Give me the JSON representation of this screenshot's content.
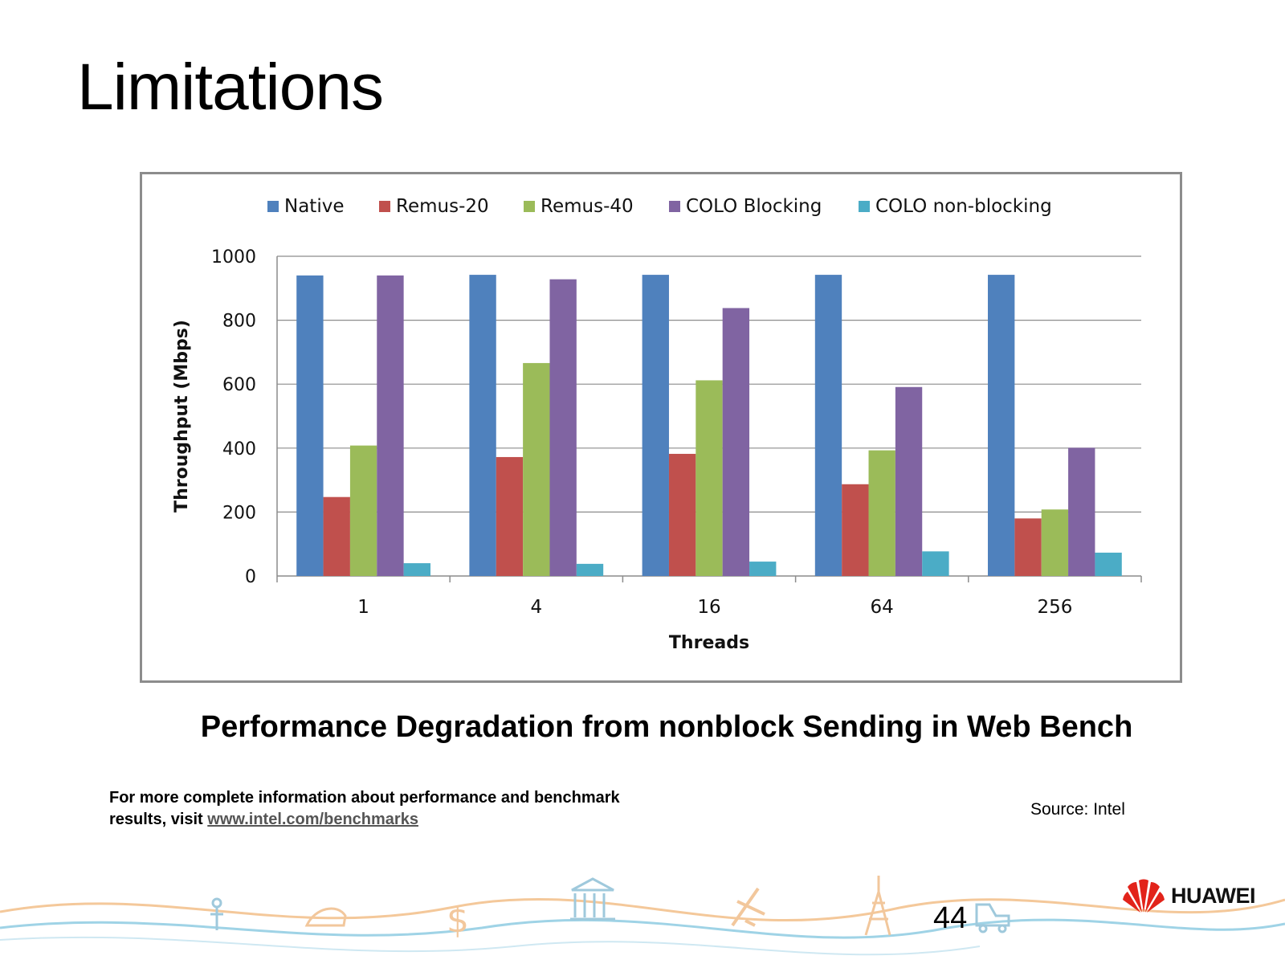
{
  "slide": {
    "title": "Limitations",
    "caption": "Performance Degradation from nonblock Sending in Web Bench",
    "footnote_line1": "For more complete information about performance and benchmark",
    "footnote_line2_prefix": "results, visit ",
    "footnote_link": "www.intel.com/benchmarks",
    "source": "Source: Intel",
    "page_number": "44",
    "logo_text": "HUAWEI"
  },
  "chart_data": {
    "type": "bar",
    "xlabel": "Threads",
    "ylabel": "Throughput (Mbps)",
    "ylim": [
      0,
      1000
    ],
    "yticks": [
      0,
      200,
      400,
      600,
      800,
      1000
    ],
    "grid": true,
    "legend_position": "top",
    "categories": [
      "1",
      "4",
      "16",
      "64",
      "256"
    ],
    "series": [
      {
        "name": "Native",
        "color": "#4f81bd",
        "values": [
          940,
          942,
          942,
          942,
          942
        ]
      },
      {
        "name": "Remus-20",
        "color": "#c0504d",
        "values": [
          247,
          372,
          382,
          287,
          180
        ]
      },
      {
        "name": "Remus-40",
        "color": "#9bbb59",
        "values": [
          408,
          666,
          612,
          393,
          208
        ]
      },
      {
        "name": "COLO Blocking",
        "color": "#8064a2",
        "values": [
          940,
          928,
          838,
          591,
          401
        ]
      },
      {
        "name": "COLO non-blocking",
        "color": "#4bacc6",
        "values": [
          40,
          38,
          45,
          77,
          73
        ]
      }
    ]
  }
}
